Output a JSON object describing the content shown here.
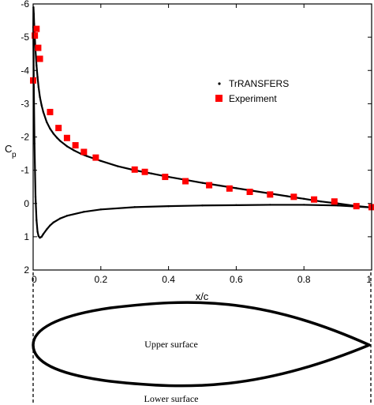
{
  "chart_data": {
    "type": "scatter",
    "xlabel": "x/c",
    "ylabel": "C",
    "ylabel_subscript": "p",
    "xlim": [
      0,
      1
    ],
    "ylim": [
      -6,
      2
    ],
    "y_inverted": true,
    "xticks": [
      "0",
      "0.2",
      "0.4",
      "0.6",
      "0.8",
      "1"
    ],
    "yticks": [
      "-6",
      "-5",
      "-4",
      "-3",
      "-2",
      "-1",
      "0",
      "1",
      "2"
    ],
    "legend_position": "right-middle",
    "series": [
      {
        "name": "TrRANSFERS",
        "marker": "small-dot",
        "color": "#000000",
        "surface": "upper",
        "x": [
          0.0005,
          0.001,
          0.002,
          0.003,
          0.005,
          0.007,
          0.01,
          0.013,
          0.016,
          0.02,
          0.025,
          0.03,
          0.04,
          0.05,
          0.06,
          0.07,
          0.08,
          0.1,
          0.12,
          0.14,
          0.16,
          0.18,
          0.2,
          0.25,
          0.3,
          0.35,
          0.4,
          0.45,
          0.5,
          0.55,
          0.6,
          0.65,
          0.7,
          0.75,
          0.8,
          0.85,
          0.9,
          0.95,
          1.0
        ],
        "y": [
          -5.3,
          -5.9,
          -5.7,
          -5.4,
          -5.0,
          -4.6,
          -4.15,
          -3.8,
          -3.5,
          -3.2,
          -2.95,
          -2.75,
          -2.45,
          -2.25,
          -2.1,
          -1.98,
          -1.88,
          -1.72,
          -1.6,
          -1.5,
          -1.42,
          -1.35,
          -1.28,
          -1.12,
          -1.0,
          -0.9,
          -0.8,
          -0.71,
          -0.62,
          -0.54,
          -0.46,
          -0.38,
          -0.3,
          -0.22,
          -0.14,
          -0.06,
          0.0,
          0.07,
          0.12
        ]
      },
      {
        "name": "TrRANSFERS",
        "marker": "small-dot",
        "color": "#000000",
        "surface": "lower",
        "x": [
          0.0005,
          0.002,
          0.004,
          0.007,
          0.01,
          0.013,
          0.016,
          0.02,
          0.025,
          0.03,
          0.04,
          0.05,
          0.06,
          0.08,
          0.1,
          0.15,
          0.2,
          0.3,
          0.4,
          0.5,
          0.6,
          0.7,
          0.8,
          0.9,
          1.0
        ],
        "y": [
          -5.3,
          -3.5,
          -1.8,
          -0.2,
          0.5,
          0.85,
          0.98,
          1.03,
          1.0,
          0.92,
          0.78,
          0.66,
          0.57,
          0.45,
          0.37,
          0.25,
          0.18,
          0.11,
          0.08,
          0.06,
          0.05,
          0.04,
          0.04,
          0.06,
          0.12
        ]
      },
      {
        "name": "Experiment",
        "marker": "square",
        "color": "#ff0000",
        "x": [
          0.0,
          0.005,
          0.01,
          0.015,
          0.02,
          0.05,
          0.075,
          0.1,
          0.125,
          0.15,
          0.185,
          0.3,
          0.33,
          0.39,
          0.45,
          0.52,
          0.58,
          0.64,
          0.7,
          0.77,
          0.83,
          0.89,
          0.955,
          1.0
        ],
        "y": [
          -3.7,
          -5.05,
          -5.25,
          -4.68,
          -4.35,
          -2.75,
          -2.27,
          -1.97,
          -1.75,
          -1.55,
          -1.38,
          -1.02,
          -0.95,
          -0.8,
          -0.67,
          -0.55,
          -0.45,
          -0.35,
          -0.27,
          -0.2,
          -0.12,
          -0.06,
          0.08,
          0.11
        ]
      }
    ]
  },
  "airfoil": {
    "upper_label": "Upper surface",
    "lower_label": "Lower surface"
  }
}
